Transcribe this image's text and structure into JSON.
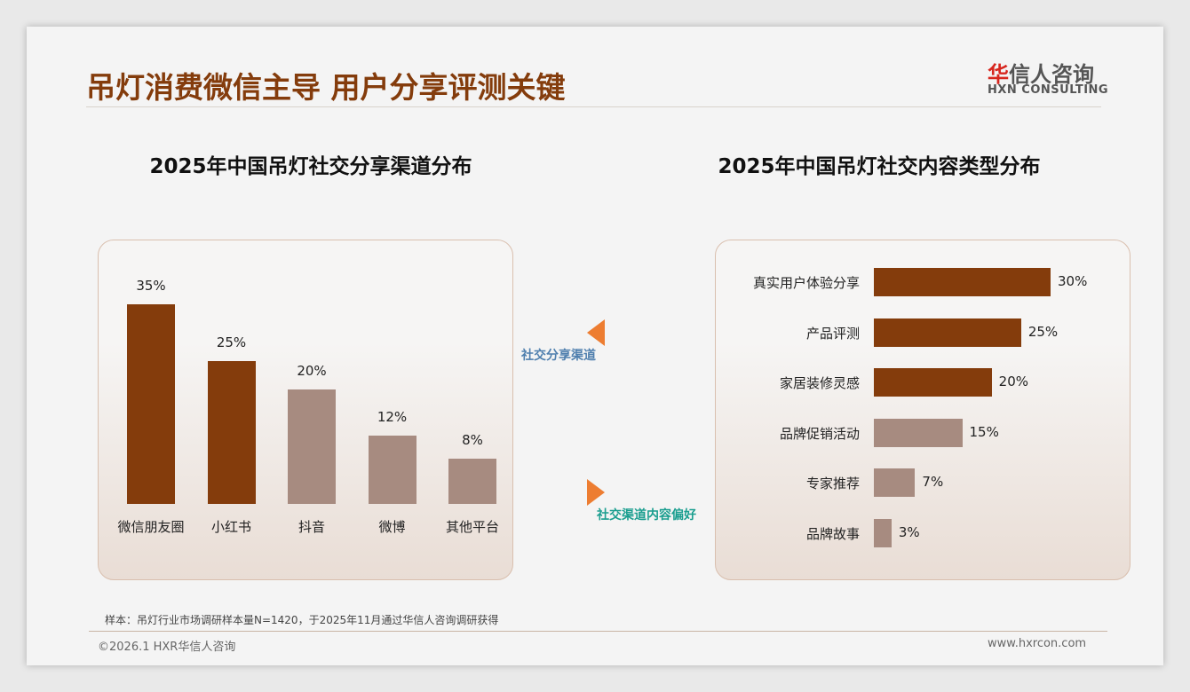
{
  "header": {
    "title": "吊灯消费微信主导 用户分享评测关键",
    "logo_cn_red": "华",
    "logo_cn": "信人咨询",
    "logo_en": "HXN CONSULTING"
  },
  "annotations": {
    "left_arrow_label": "社交分享渠道",
    "right_arrow_label": "社交渠道内容偏好",
    "arrow_color": "#ed7d31",
    "left_label_color": "#4f7fae",
    "right_label_color": "#1a9e8f"
  },
  "footer": {
    "note": "样本：吊灯行业市场调研样本量N=1420，于2025年11月通过华信人咨询调研获得",
    "copyright": "©2026.1 HXR华信人咨询",
    "website": "www.hxrcon.com"
  },
  "chart_data": [
    {
      "type": "bar",
      "title": "2025年中国吊灯社交分享渠道分布",
      "categories": [
        "微信朋友圈",
        "小红书",
        "抖音",
        "微博",
        "其他平台"
      ],
      "values": [
        35,
        25,
        20,
        12,
        8
      ],
      "labels": [
        "35%",
        "25%",
        "20%",
        "12%",
        "8%"
      ],
      "highlight": [
        true,
        true,
        false,
        false,
        false
      ],
      "colors": {
        "highlight": "#843c0c",
        "normal": "#a78b80"
      },
      "ylim": [
        0,
        35
      ],
      "grid": false
    },
    {
      "type": "bar",
      "orientation": "horizontal",
      "title": "2025年中国吊灯社交内容类型分布",
      "categories": [
        "真实用户体验分享",
        "产品评测",
        "家居装修灵感",
        "品牌促销活动",
        "专家推荐",
        "品牌故事"
      ],
      "values": [
        30,
        25,
        20,
        15,
        7,
        3
      ],
      "labels": [
        "30%",
        "25%",
        "20%",
        "15%",
        "7%",
        "3%"
      ],
      "highlight": [
        true,
        true,
        true,
        false,
        false,
        false
      ],
      "colors": {
        "highlight": "#843c0c",
        "normal": "#a78b80"
      },
      "xlim": [
        0,
        30
      ],
      "grid": false
    }
  ]
}
